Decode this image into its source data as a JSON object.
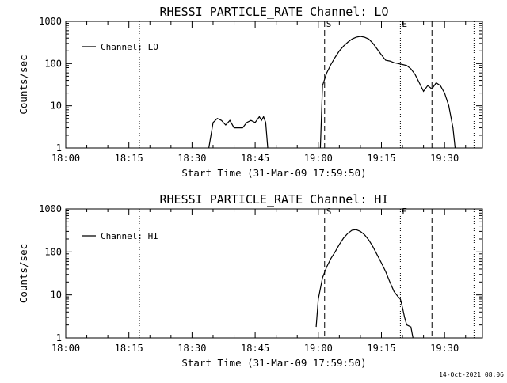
{
  "chart_data": [
    {
      "type": "line",
      "title": "RHESSI PARTICLE_RATE Channel: LO",
      "xlabel": "Start Time (31-Mar-09 17:59:50)",
      "ylabel": "Counts/sec",
      "y_scale": "log",
      "ylim": [
        1,
        1000
      ],
      "xlim_minutes": [
        0,
        99
      ],
      "x_tick_labels": [
        "18:00",
        "18:15",
        "18:30",
        "18:45",
        "19:00",
        "19:15",
        "19:30"
      ],
      "y_tick_labels": [
        "1",
        "10",
        "100",
        "1000"
      ],
      "legend": "top-left",
      "markers": [
        {
          "label": "S",
          "time": "19:01.5",
          "style": "dashed",
          "labeled": true
        },
        {
          "label": "E",
          "time": "19:19.5",
          "style": "dotted",
          "labeled": true
        },
        {
          "label": "",
          "time": "18:17.5",
          "style": "dotted",
          "labeled": false
        },
        {
          "label": "",
          "time": "19:27",
          "style": "dashed",
          "labeled": false
        },
        {
          "label": "",
          "time": "19:37",
          "style": "dotted",
          "labeled": false
        }
      ],
      "series": [
        {
          "name": "Channel: LO",
          "points": [
            [
              "18:34.0",
              1
            ],
            [
              "18:35.0",
              4
            ],
            [
              "18:36.0",
              5
            ],
            [
              "18:37.0",
              4.5
            ],
            [
              "18:38.0",
              3.5
            ],
            [
              "18:39.0",
              4.5
            ],
            [
              "18:40.0",
              3.0
            ],
            [
              "18:41.0",
              3.0
            ],
            [
              "18:42.0",
              3.0
            ],
            [
              "18:43.0",
              4.0
            ],
            [
              "18:44.0",
              4.5
            ],
            [
              "18:45.0",
              4.0
            ],
            [
              "18:46.0",
              5.5
            ],
            [
              "18:46.5",
              4.5
            ],
            [
              "18:47.0",
              5.5
            ],
            [
              "18:47.5",
              4.0
            ],
            [
              "18:48.0",
              1
            ],
            null,
            [
              "19:00.5",
              1
            ],
            [
              "19:01.0",
              30
            ],
            [
              "19:02.0",
              60
            ],
            [
              "19:03.0",
              95
            ],
            [
              "19:04.0",
              140
            ],
            [
              "19:05.0",
              200
            ],
            [
              "19:06.0",
              260
            ],
            [
              "19:07.0",
              320
            ],
            [
              "19:08.0",
              380
            ],
            [
              "19:09.0",
              420
            ],
            [
              "19:10.0",
              440
            ],
            [
              "19:11.0",
              420
            ],
            [
              "19:12.0",
              380
            ],
            [
              "19:13.0",
              300
            ],
            [
              "19:14.0",
              220
            ],
            [
              "19:15.0",
              160
            ],
            [
              "19:16.0",
              120
            ],
            [
              "19:17.0",
              115
            ],
            [
              "19:18.0",
              105
            ],
            [
              "19:19.0",
              100
            ],
            [
              "19:20.0",
              95
            ],
            [
              "19:21.0",
              90
            ],
            [
              "19:22.0",
              75
            ],
            [
              "19:23.0",
              55
            ],
            [
              "19:24.0",
              35
            ],
            [
              "19:25.0",
              22
            ],
            [
              "19:26.0",
              30
            ],
            [
              "19:27.0",
              25
            ],
            [
              "19:28.0",
              35
            ],
            [
              "19:29.0",
              30
            ],
            [
              "19:30.0",
              20
            ],
            [
              "19:31.0",
              10
            ],
            [
              "19:32.0",
              3
            ],
            [
              "19:32.5",
              1
            ]
          ]
        }
      ]
    },
    {
      "type": "line",
      "title": "RHESSI PARTICLE_RATE Channel: HI",
      "xlabel": "Start Time (31-Mar-09 17:59:50)",
      "ylabel": "Counts/sec",
      "y_scale": "log",
      "ylim": [
        1,
        1000
      ],
      "xlim_minutes": [
        0,
        99
      ],
      "x_tick_labels": [
        "18:00",
        "18:15",
        "18:30",
        "18:45",
        "19:00",
        "19:15",
        "19:30"
      ],
      "y_tick_labels": [
        "1",
        "10",
        "100",
        "1000"
      ],
      "legend": "top-left",
      "markers": [
        {
          "label": "S",
          "time": "19:01.5",
          "style": "dashed",
          "labeled": true
        },
        {
          "label": "E",
          "time": "19:19.5",
          "style": "dotted",
          "labeled": true
        },
        {
          "label": "",
          "time": "18:17.5",
          "style": "dotted",
          "labeled": false
        },
        {
          "label": "",
          "time": "19:27",
          "style": "dashed",
          "labeled": false
        },
        {
          "label": "",
          "time": "19:37",
          "style": "dotted",
          "labeled": false
        }
      ],
      "series": [
        {
          "name": "Channel: HI",
          "points": [
            [
              "18:59.5",
              1.8
            ],
            [
              "19:00.0",
              8
            ],
            [
              "19:01.0",
              25
            ],
            [
              "19:02.0",
              45
            ],
            [
              "19:03.0",
              70
            ],
            [
              "19:04.0",
              100
            ],
            [
              "19:05.0",
              150
            ],
            [
              "19:06.0",
              210
            ],
            [
              "19:07.0",
              270
            ],
            [
              "19:08.0",
              320
            ],
            [
              "19:09.0",
              330
            ],
            [
              "19:10.0",
              300
            ],
            [
              "19:11.0",
              250
            ],
            [
              "19:12.0",
              190
            ],
            [
              "19:13.0",
              130
            ],
            [
              "19:14.0",
              85
            ],
            [
              "19:15.0",
              55
            ],
            [
              "19:16.0",
              35
            ],
            [
              "19:17.0",
              20
            ],
            [
              "19:18.0",
              12
            ],
            [
              "19:19.0",
              9
            ],
            [
              "19:19.5",
              8
            ],
            [
              "19:20.0",
              5
            ],
            [
              "19:20.5",
              3
            ],
            [
              "19:21.0",
              2
            ],
            [
              "19:22.0",
              1.8
            ],
            [
              "19:22.5",
              1
            ]
          ]
        }
      ]
    }
  ],
  "footer": {
    "timestamp": "14-Oct-2021 08:06"
  }
}
